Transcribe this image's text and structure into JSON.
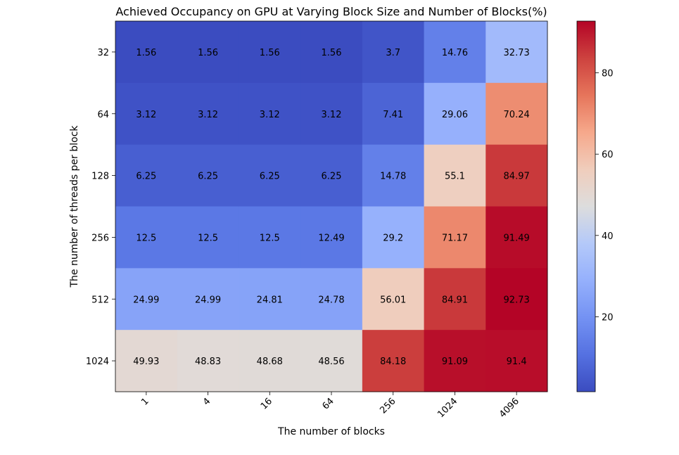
{
  "chart_data": {
    "type": "heatmap",
    "title": "Achieved Occupancy on GPU at Varying Block Size and Number of Blocks(%)",
    "xlabel": "The number of blocks",
    "ylabel": "The number of threads per block",
    "x_categories": [
      "1",
      "4",
      "16",
      "64",
      "256",
      "1024",
      "4096"
    ],
    "y_categories": [
      "32",
      "64",
      "128",
      "256",
      "512",
      "1024"
    ],
    "values": [
      [
        1.56,
        1.56,
        1.56,
        1.56,
        3.7,
        14.76,
        32.73
      ],
      [
        3.12,
        3.12,
        3.12,
        3.12,
        7.41,
        29.06,
        70.24
      ],
      [
        6.25,
        6.25,
        6.25,
        6.25,
        14.78,
        55.1,
        84.97
      ],
      [
        12.5,
        12.5,
        12.5,
        12.49,
        29.2,
        71.17,
        91.49
      ],
      [
        24.99,
        24.99,
        24.81,
        24.78,
        56.01,
        84.91,
        92.73
      ],
      [
        49.93,
        48.83,
        48.68,
        48.56,
        84.18,
        91.09,
        91.4
      ]
    ],
    "value_labels": [
      [
        "1.56",
        "1.56",
        "1.56",
        "1.56",
        "3.7",
        "14.76",
        "32.73"
      ],
      [
        "3.12",
        "3.12",
        "3.12",
        "3.12",
        "7.41",
        "29.06",
        "70.24"
      ],
      [
        "6.25",
        "6.25",
        "6.25",
        "6.25",
        "14.78",
        "55.1",
        "84.97"
      ],
      [
        "12.5",
        "12.5",
        "12.5",
        "12.49",
        "29.2",
        "71.17",
        "91.49"
      ],
      [
        "24.99",
        "24.99",
        "24.81",
        "24.78",
        "56.01",
        "84.91",
        "92.73"
      ],
      [
        "49.93",
        "48.83",
        "48.68",
        "48.56",
        "84.18",
        "91.09",
        "91.4"
      ]
    ],
    "colormap": "coolwarm",
    "color_range": [
      1.56,
      92.73
    ],
    "colorbar_ticks": [
      20,
      40,
      60,
      80
    ],
    "colorbar_tick_labels": [
      "20",
      "40",
      "60",
      "80"
    ],
    "x_tick_rotation": "45 degrees",
    "grid": false
  }
}
